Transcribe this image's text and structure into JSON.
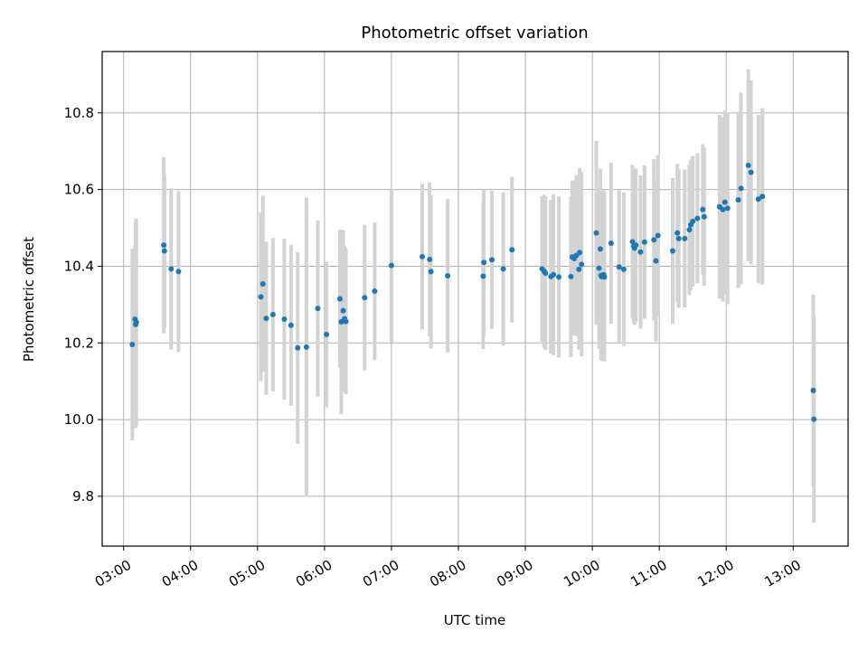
{
  "chart_data": {
    "type": "scatter",
    "title": "Photometric offset variation",
    "xlabel": "UTC time",
    "ylabel": "Photometric offset",
    "x_tick_labels": [
      "03:00",
      "04:00",
      "05:00",
      "06:00",
      "07:00",
      "08:00",
      "09:00",
      "10:00",
      "11:00",
      "12:00",
      "13:00"
    ],
    "x_ticks_hours": [
      3,
      4,
      5,
      6,
      7,
      8,
      9,
      10,
      11,
      12,
      13
    ],
    "xlim_hours": [
      2.68,
      13.82
    ],
    "y_ticks": [
      9.8,
      10.0,
      10.2,
      10.4,
      10.6,
      10.8
    ],
    "ylim": [
      9.67,
      10.96
    ],
    "grid": true,
    "point_color": "#1f77b4",
    "errorbar_color": "#d3d3d3",
    "x_time_hours": [
      3.13,
      3.17,
      3.18,
      3.19,
      3.6,
      3.61,
      3.71,
      3.82,
      5.05,
      5.08,
      5.13,
      5.23,
      5.4,
      5.5,
      5.6,
      5.73,
      5.9,
      6.03,
      6.23,
      6.25,
      6.28,
      6.29,
      6.3,
      6.32,
      6.6,
      6.75,
      7.0,
      7.46,
      7.57,
      7.59,
      7.84,
      8.37,
      8.38,
      8.5,
      8.67,
      8.8,
      9.25,
      9.28,
      9.3,
      9.38,
      9.42,
      9.5,
      9.68,
      9.7,
      9.71,
      9.73,
      9.76,
      9.8,
      9.81,
      9.84,
      10.06,
      10.1,
      10.12,
      10.13,
      10.14,
      10.17,
      10.18,
      10.28,
      10.4,
      10.47,
      10.6,
      10.62,
      10.63,
      10.65,
      10.72,
      10.78,
      10.92,
      10.95,
      10.98,
      11.2,
      11.27,
      11.29,
      11.38,
      11.45,
      11.47,
      11.5,
      11.57,
      11.65,
      11.67,
      11.9,
      11.95,
      11.98,
      12.02,
      12.18,
      12.22,
      12.33,
      12.37,
      12.48,
      12.54,
      13.3,
      13.31
    ],
    "y_offset": [
      10.196,
      10.262,
      10.248,
      10.254,
      10.455,
      10.44,
      10.393,
      10.386,
      10.32,
      10.354,
      10.264,
      10.274,
      10.262,
      10.246,
      10.187,
      10.189,
      10.29,
      10.222,
      10.315,
      10.255,
      10.284,
      10.258,
      10.263,
      10.256,
      10.318,
      10.335,
      10.402,
      10.425,
      10.418,
      10.386,
      10.375,
      10.374,
      10.41,
      10.417,
      10.393,
      10.443,
      10.393,
      10.387,
      10.382,
      10.373,
      10.378,
      10.372,
      10.373,
      10.424,
      10.424,
      10.42,
      10.428,
      10.392,
      10.436,
      10.405,
      10.487,
      10.395,
      10.445,
      10.376,
      10.373,
      10.378,
      10.372,
      10.46,
      10.398,
      10.392,
      10.464,
      10.452,
      10.447,
      10.455,
      10.437,
      10.463,
      10.469,
      10.414,
      10.48,
      10.44,
      10.487,
      10.472,
      10.472,
      10.495,
      10.508,
      10.517,
      10.525,
      10.548,
      10.529,
      10.555,
      10.548,
      10.567,
      10.551,
      10.573,
      10.603,
      10.663,
      10.645,
      10.575,
      10.582,
      10.076,
      10.001
    ],
    "y_error": [
      0.25,
      0.19,
      0.27,
      0.27,
      0.23,
      0.2,
      0.21,
      0.21,
      0.22,
      0.23,
      0.2,
      0.2,
      0.21,
      0.21,
      0.25,
      0.39,
      0.23,
      0.19,
      0.18,
      0.24,
      0.21,
      0.18,
      0.19,
      0.19,
      0.19,
      0.18,
      0.2,
      0.19,
      0.2,
      0.2,
      0.2,
      0.19,
      0.19,
      0.18,
      0.2,
      0.19,
      0.19,
      0.2,
      0.2,
      0.2,
      0.21,
      0.21,
      0.21,
      0.2,
      0.2,
      0.2,
      0.21,
      0.21,
      0.22,
      0.24,
      0.24,
      0.21,
      0.21,
      0.22,
      0.22,
      0.22,
      0.22,
      0.21,
      0.2,
      0.2,
      0.2,
      0.2,
      0.2,
      0.2,
      0.2,
      0.2,
      0.21,
      0.21,
      0.21,
      0.19,
      0.18,
      0.18,
      0.18,
      0.17,
      0.17,
      0.17,
      0.17,
      0.17,
      0.18,
      0.24,
      0.24,
      0.24,
      0.25,
      0.23,
      0.25,
      0.25,
      0.24,
      0.22,
      0.23,
      0.25,
      0.27
    ]
  }
}
